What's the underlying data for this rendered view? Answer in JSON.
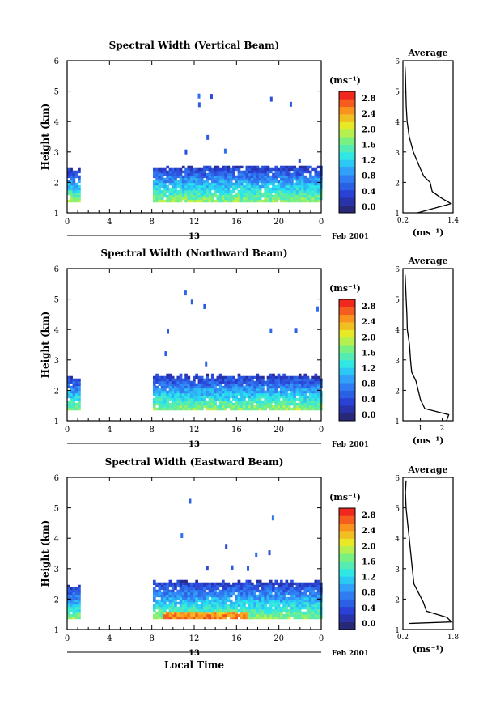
{
  "figure": {
    "date_label": "Feb 2001",
    "xlabel": "Local Time",
    "day_label": "13"
  },
  "chart_data": [
    {
      "type": "heatmap",
      "title": "Spectral Width (Vertical Beam)",
      "ylabel": "Height (km)",
      "xlim": [
        0,
        24
      ],
      "ylim": [
        1,
        6
      ],
      "xticks": [
        "0",
        "4",
        "8",
        "12",
        "16",
        "20",
        "0"
      ],
      "yticks": [
        "1",
        "2",
        "3",
        "4",
        "5",
        "6"
      ],
      "colorbar": {
        "unit": "(ms⁻¹)",
        "min": 0,
        "max": 2.8,
        "ticks": [
          "0.0",
          "0.4",
          "0.8",
          "1.2",
          "1.6",
          "2.0",
          "2.4",
          "2.8"
        ]
      },
      "data_blocks": [
        {
          "t": [
            0.0,
            1.2
          ],
          "h": [
            1.35,
            2.45
          ]
        },
        {
          "t": [
            8.1,
            24.0
          ],
          "h": [
            1.35,
            2.55
          ]
        }
      ],
      "average_profile": {
        "title": "Average",
        "xlabel": "(ms⁻¹)",
        "xlim": [
          0.2,
          1.4
        ],
        "xticks": [
          "0.2",
          "1.4"
        ],
        "height": [
          1.0,
          1.3,
          1.5,
          1.7,
          2.0,
          2.2,
          2.5,
          3.0,
          3.5,
          4.0,
          4.5,
          5.0,
          5.5,
          5.8
        ],
        "value": [
          0.55,
          1.35,
          1.1,
          0.9,
          0.85,
          0.7,
          0.6,
          0.45,
          0.35,
          0.3,
          0.28,
          0.27,
          0.26,
          0.25
        ]
      }
    },
    {
      "type": "heatmap",
      "title": "Spectral Width (Northward Beam)",
      "ylabel": "Height (km)",
      "xlim": [
        0,
        24
      ],
      "ylim": [
        1,
        6
      ],
      "xticks": [
        "0",
        "4",
        "8",
        "12",
        "16",
        "20",
        "0"
      ],
      "yticks": [
        "1",
        "2",
        "3",
        "4",
        "5",
        "6"
      ],
      "colorbar": {
        "unit": "(ms⁻¹)",
        "min": 0,
        "max": 2.8,
        "ticks": [
          "0.0",
          "0.4",
          "0.8",
          "1.2",
          "1.6",
          "2.0",
          "2.4",
          "2.8"
        ]
      },
      "data_blocks": [
        {
          "t": [
            0.0,
            1.2
          ],
          "h": [
            1.35,
            2.45
          ]
        },
        {
          "t": [
            8.1,
            24.0
          ],
          "h": [
            1.35,
            2.5
          ]
        }
      ],
      "average_profile": {
        "title": "Average",
        "xlabel": "(ms⁻¹)",
        "xlim": [
          0.2,
          2.5
        ],
        "xticks": [
          "1",
          "2"
        ],
        "height": [
          1.0,
          1.2,
          1.4,
          1.7,
          2.0,
          2.3,
          2.6,
          3.0,
          3.5,
          4.0,
          4.5,
          5.0,
          5.5,
          5.8
        ],
        "value": [
          2.2,
          2.3,
          1.2,
          1.0,
          0.9,
          0.8,
          0.6,
          0.55,
          0.5,
          0.4,
          0.38,
          0.35,
          0.32,
          0.3
        ]
      }
    },
    {
      "type": "heatmap",
      "title": "Spectral Width (Eastward Beam)",
      "ylabel": "Height (km)",
      "xlim": [
        0,
        24
      ],
      "ylim": [
        1,
        6
      ],
      "xticks": [
        "0",
        "4",
        "8",
        "12",
        "16",
        "20",
        "0"
      ],
      "yticks": [
        "1",
        "2",
        "3",
        "4",
        "5",
        "6"
      ],
      "colorbar": {
        "unit": "(ms⁻¹)",
        "min": 0,
        "max": 2.8,
        "ticks": [
          "0.0",
          "0.4",
          "0.8",
          "1.2",
          "1.6",
          "2.0",
          "2.4",
          "2.8"
        ]
      },
      "data_blocks": [
        {
          "t": [
            0.0,
            1.2
          ],
          "h": [
            1.35,
            2.45
          ]
        },
        {
          "t": [
            8.1,
            24.0
          ],
          "h": [
            1.35,
            2.6
          ]
        }
      ],
      "average_profile": {
        "title": "Average",
        "xlabel": "(ms⁻¹)",
        "xlim": [
          0.2,
          1.8
        ],
        "xticks": [
          "0.2",
          "1.8"
        ],
        "height": [
          1.2,
          1.25,
          1.4,
          1.6,
          1.9,
          2.2,
          2.5,
          3.0,
          3.5,
          4.0,
          4.5,
          5.0,
          5.5,
          5.9
        ],
        "value": [
          0.4,
          1.75,
          1.6,
          0.95,
          0.85,
          0.7,
          0.55,
          0.5,
          0.45,
          0.4,
          0.35,
          0.3,
          0.28,
          0.3
        ]
      }
    }
  ]
}
